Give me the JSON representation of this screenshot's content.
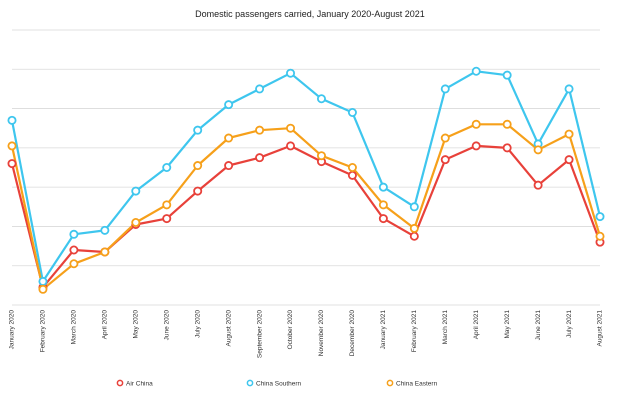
{
  "chart_data": {
    "type": "line",
    "title": "Domestic passengers carried, January 2020-August 2021",
    "xlabel": "",
    "ylabel": "",
    "ylim": [
      0,
      7
    ],
    "grid": true,
    "legend_position": "bottom",
    "categories": [
      "January 2020",
      "February 2020",
      "March 2020",
      "April 2020",
      "May 2020",
      "June 2020",
      "July 2020",
      "August 2020",
      "September 2020",
      "October 2020",
      "November 2020",
      "December 2020",
      "January 2021",
      "February 2021",
      "March 2021",
      "April 2021",
      "May 2021",
      "June 2021",
      "July 2021",
      "August 2021"
    ],
    "series": [
      {
        "name": "Air China",
        "color": "#e8413a",
        "values": [
          3.6,
          0.45,
          1.4,
          1.35,
          2.05,
          2.2,
          2.9,
          3.55,
          3.75,
          4.05,
          3.65,
          3.3,
          2.2,
          1.75,
          3.7,
          4.05,
          4.0,
          3.05,
          3.7,
          1.6
        ]
      },
      {
        "name": "China Southern",
        "color": "#3ec6ee",
        "values": [
          4.7,
          0.6,
          1.8,
          1.9,
          2.9,
          3.5,
          4.45,
          5.1,
          5.5,
          5.9,
          5.25,
          4.9,
          3.0,
          2.5,
          5.5,
          5.95,
          5.85,
          4.1,
          5.5,
          2.25
        ]
      },
      {
        "name": "China Eastern",
        "color": "#f6a01a",
        "values": [
          4.05,
          0.4,
          1.05,
          1.35,
          2.1,
          2.55,
          3.55,
          4.25,
          4.45,
          4.5,
          3.8,
          3.5,
          2.55,
          1.95,
          4.25,
          4.6,
          4.6,
          3.95,
          4.35,
          1.75
        ]
      }
    ]
  }
}
